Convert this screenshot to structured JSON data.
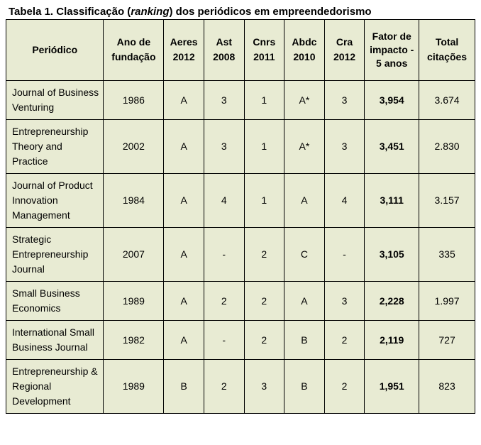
{
  "caption": {
    "prefix": "Tabela 1. Classificação (",
    "italic": "ranking",
    "suffix": ") dos periódicos em empreendedorismo"
  },
  "table": {
    "background_color": "#e8ebd3",
    "columns": [
      {
        "key": "journal",
        "label_top": "Periódico",
        "label_bot": ""
      },
      {
        "key": "year",
        "label_top": "Ano de",
        "label_bot": "fundação"
      },
      {
        "key": "aeres",
        "label_top": "Aeres",
        "label_bot": "2012"
      },
      {
        "key": "ast",
        "label_top": "Ast",
        "label_bot": "2008"
      },
      {
        "key": "cnrs",
        "label_top": "Cnrs",
        "label_bot": "2011"
      },
      {
        "key": "abdc",
        "label_top": "Abdc",
        "label_bot": "2010"
      },
      {
        "key": "cra",
        "label_top": "Cra",
        "label_bot": "2012"
      },
      {
        "key": "impact",
        "label_top": "Fator de impacto - 5 anos",
        "label_bot": ""
      },
      {
        "key": "cit",
        "label_top": "Total",
        "label_bot": "citações"
      }
    ],
    "rows": [
      {
        "journal": "Journal of Business Venturing",
        "year": "1986",
        "aeres": "A",
        "ast": "3",
        "cnrs": "1",
        "abdc": "A*",
        "cra": "3",
        "impact": "3,954",
        "cit": "3.674"
      },
      {
        "journal": "Entrepreneurship Theory and Practice",
        "year": "2002",
        "aeres": "A",
        "ast": "3",
        "cnrs": "1",
        "abdc": "A*",
        "cra": "3",
        "impact": "3,451",
        "cit": "2.830"
      },
      {
        "journal": "Journal of Product Innovation Management",
        "year": "1984",
        "aeres": "A",
        "ast": "4",
        "cnrs": "1",
        "abdc": "A",
        "cra": "4",
        "impact": "3,111",
        "cit": "3.157"
      },
      {
        "journal": "Strategic Entrepreneurship Journal",
        "year": "2007",
        "aeres": "A",
        "ast": "-",
        "cnrs": "2",
        "abdc": "C",
        "cra": "-",
        "impact": "3,105",
        "cit": "335"
      },
      {
        "journal": "Small Business Economics",
        "year": "1989",
        "aeres": "A",
        "ast": "2",
        "cnrs": "2",
        "abdc": "A",
        "cra": "3",
        "impact": "2,228",
        "cit": "1.997"
      },
      {
        "journal": "International Small Business Journal",
        "year": "1982",
        "aeres": "A",
        "ast": "-",
        "cnrs": "2",
        "abdc": "B",
        "cra": "2",
        "impact": "2,119",
        "cit": "727"
      },
      {
        "journal": "Entrepreneurship & Regional Development",
        "year": "1989",
        "aeres": "B",
        "ast": "2",
        "cnrs": "3",
        "abdc": "B",
        "cra": "2",
        "impact": "1,951",
        "cit": "823"
      }
    ]
  }
}
